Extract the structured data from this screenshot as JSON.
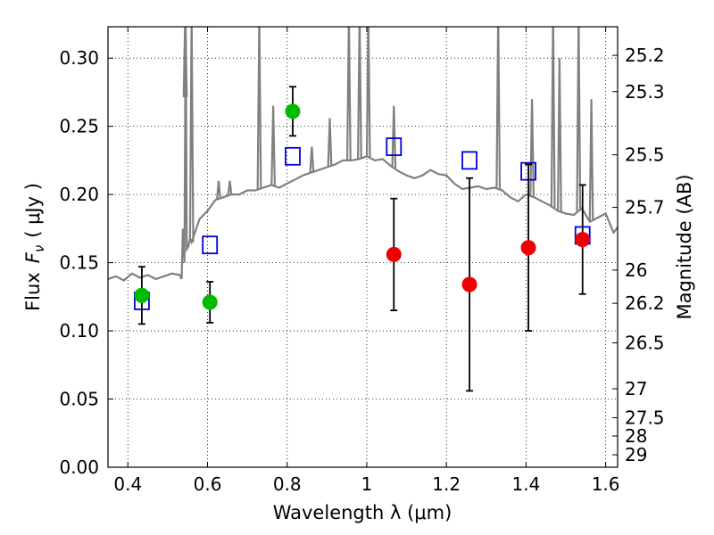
{
  "chart_data": {
    "type": "scatter",
    "xlabel": "Wavelength  λ (μm)",
    "ylabel_prefix": "Flux",
    "ylabel_symbol": "F",
    "ylabel_subscript": "ν",
    "ylabel_suffix": "( μJy )",
    "y2label": "Magnitude (AB)",
    "xlim": [
      0.35,
      1.63
    ],
    "ylim": [
      0.0,
      0.323
    ],
    "grid": true,
    "x_ticks": [
      0.4,
      0.6,
      0.8,
      1.0,
      1.2,
      1.4,
      1.6
    ],
    "x_tick_labels": [
      "0.4",
      "0.6",
      "0.8",
      "1",
      "1.2",
      "1.4",
      "1.6"
    ],
    "y_ticks": [
      0.0,
      0.05,
      0.1,
      0.15,
      0.2,
      0.25,
      0.3
    ],
    "y_tick_labels": [
      "0.00",
      "0.05",
      "0.10",
      "0.15",
      "0.20",
      "0.25",
      "0.30"
    ],
    "mag_ticks": [
      25.2,
      25.3,
      25.5,
      25.7,
      26,
      26.2,
      26.5,
      27,
      27.5,
      28,
      29
    ],
    "mag_tick_labels": [
      "25.2",
      "25.3",
      "25.5",
      "25.7",
      "26",
      "26.2",
      "26.5",
      "27",
      "27.5",
      "28",
      "29"
    ],
    "series": [
      {
        "marker": "circle",
        "color": "#00bb00",
        "points": [
          {
            "x": 0.435,
            "y": 0.126,
            "err": 0.021
          },
          {
            "x": 0.606,
            "y": 0.121,
            "err": 0.015
          },
          {
            "x": 0.814,
            "y": 0.261,
            "err": 0.018
          }
        ]
      },
      {
        "marker": "circle",
        "color": "#ee0000",
        "points": [
          {
            "x": 1.068,
            "y": 0.156,
            "err": 0.041
          },
          {
            "x": 1.258,
            "y": 0.134,
            "err": 0.078
          },
          {
            "x": 1.406,
            "y": 0.161,
            "err": 0.061
          },
          {
            "x": 1.542,
            "y": 0.167,
            "err": 0.04
          }
        ]
      },
      {
        "marker": "open-square",
        "color": "#0000dd",
        "points": [
          {
            "x": 0.435,
            "y": 0.122
          },
          {
            "x": 0.606,
            "y": 0.163
          },
          {
            "x": 0.814,
            "y": 0.228
          },
          {
            "x": 1.068,
            "y": 0.235
          },
          {
            "x": 1.258,
            "y": 0.225
          },
          {
            "x": 1.406,
            "y": 0.217
          },
          {
            "x": 1.542,
            "y": 0.17
          }
        ]
      }
    ],
    "spectrum": {
      "color": "#808080",
      "x": [
        0.35,
        0.37,
        0.39,
        0.41,
        0.43,
        0.45,
        0.47,
        0.49,
        0.51,
        0.53,
        0.535,
        0.538,
        0.542,
        0.545,
        0.548,
        0.552,
        0.556,
        0.56,
        0.58,
        0.6,
        0.62,
        0.64,
        0.66,
        0.68,
        0.7,
        0.72,
        0.74,
        0.76,
        0.78,
        0.8,
        0.82,
        0.84,
        0.86,
        0.88,
        0.9,
        0.92,
        0.94,
        0.96,
        0.98,
        1.0,
        1.02,
        1.04,
        1.06,
        1.08,
        1.1,
        1.12,
        1.14,
        1.16,
        1.18,
        1.2,
        1.22,
        1.24,
        1.26,
        1.28,
        1.3,
        1.32,
        1.34,
        1.36,
        1.38,
        1.4,
        1.42,
        1.44,
        1.46,
        1.48,
        1.5,
        1.52,
        1.54,
        1.56,
        1.58,
        1.6,
        1.62,
        1.63
      ],
      "y": [
        0.138,
        0.14,
        0.137,
        0.142,
        0.139,
        0.141,
        0.138,
        0.14,
        0.142,
        0.141,
        0.138,
        0.175,
        0.15,
        0.332,
        0.16,
        0.162,
        0.168,
        0.165,
        0.182,
        0.188,
        0.196,
        0.198,
        0.2,
        0.2,
        0.203,
        0.203,
        0.205,
        0.207,
        0.205,
        0.208,
        0.211,
        0.214,
        0.216,
        0.218,
        0.22,
        0.222,
        0.225,
        0.225,
        0.226,
        0.228,
        0.225,
        0.226,
        0.221,
        0.217,
        0.214,
        0.212,
        0.214,
        0.218,
        0.215,
        0.214,
        0.208,
        0.204,
        0.205,
        0.206,
        0.204,
        0.205,
        0.203,
        0.198,
        0.195,
        0.2,
        0.198,
        0.195,
        0.192,
        0.188,
        0.186,
        0.185,
        0.19,
        0.18,
        0.183,
        0.186,
        0.172,
        0.176
      ],
      "emission_lines": [
        {
          "x": 0.544,
          "peak": 0.332
        },
        {
          "x": 0.56,
          "peak": 0.332
        },
        {
          "x": 0.628,
          "peak": 0.21
        },
        {
          "x": 0.656,
          "peak": 0.21
        },
        {
          "x": 0.73,
          "peak": 0.332
        },
        {
          "x": 0.765,
          "peak": 0.265
        },
        {
          "x": 0.862,
          "peak": 0.235
        },
        {
          "x": 0.907,
          "peak": 0.256
        },
        {
          "x": 0.955,
          "peak": 0.332
        },
        {
          "x": 0.982,
          "peak": 0.332
        },
        {
          "x": 1.004,
          "peak": 0.332
        },
        {
          "x": 1.068,
          "peak": 0.265
        },
        {
          "x": 1.33,
          "peak": 0.332
        },
        {
          "x": 1.415,
          "peak": 0.27
        },
        {
          "x": 1.468,
          "peak": 0.332
        },
        {
          "x": 1.484,
          "peak": 0.3
        },
        {
          "x": 1.532,
          "peak": 0.332
        },
        {
          "x": 1.564,
          "peak": 0.27
        }
      ]
    }
  }
}
